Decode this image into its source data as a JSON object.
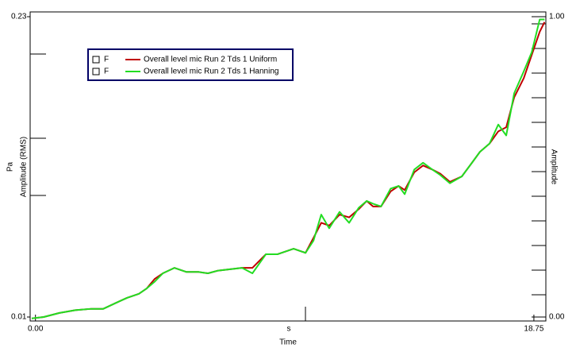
{
  "chart_data": {
    "type": "line",
    "y_unit": "Pa",
    "y_label": "Amplitude (RMS)",
    "y2_label": "Amplitude",
    "x_unit": "s",
    "x_label": "Time",
    "x": [
      -0.14,
      0.31,
      0.9,
      1.5,
      2.1,
      2.55,
      2.99,
      3.44,
      3.89,
      4.19,
      4.49,
      4.79,
      5.23,
      5.68,
      6.13,
      6.49,
      6.87,
      7.32,
      7.77,
      8.16,
      8.67,
      9.11,
      9.71,
      10.16,
      10.46,
      10.75,
      11.05,
      11.44,
      11.8,
      12.16,
      12.46,
      12.7,
      13.0,
      13.36,
      13.66,
      13.89,
      14.25,
      14.58,
      14.93,
      15.23,
      15.59,
      16.04,
      16.42,
      16.72,
      17.08,
      17.41,
      17.71,
      18.01,
      18.37,
      18.67,
      18.97,
      19.15
    ],
    "series": [
      {
        "prefix": "F",
        "name": "Overall level mic  Run 2 Tds 1 Uniform",
        "color": "#c00000",
        "values": [
          0.009,
          0.01,
          0.013,
          0.015,
          0.016,
          0.016,
          0.02,
          0.024,
          0.027,
          0.031,
          0.038,
          0.042,
          0.046,
          0.043,
          0.043,
          0.042,
          0.044,
          0.045,
          0.046,
          0.046,
          0.056,
          0.056,
          0.06,
          0.057,
          0.068,
          0.079,
          0.077,
          0.085,
          0.083,
          0.089,
          0.095,
          0.091,
          0.091,
          0.102,
          0.106,
          0.103,
          0.116,
          0.121,
          0.118,
          0.115,
          0.109,
          0.113,
          0.123,
          0.131,
          0.137,
          0.146,
          0.149,
          0.171,
          0.185,
          0.202,
          0.219,
          0.226
        ]
      },
      {
        "prefix": "F",
        "name": "Overall level mic  Run 2 Tds 1 Hanning",
        "color": "#22dd22",
        "values": [
          0.009,
          0.01,
          0.013,
          0.015,
          0.016,
          0.016,
          0.02,
          0.024,
          0.027,
          0.031,
          0.036,
          0.042,
          0.046,
          0.043,
          0.043,
          0.042,
          0.044,
          0.045,
          0.046,
          0.042,
          0.056,
          0.056,
          0.06,
          0.057,
          0.066,
          0.085,
          0.075,
          0.087,
          0.079,
          0.09,
          0.095,
          0.093,
          0.091,
          0.104,
          0.106,
          0.1,
          0.118,
          0.123,
          0.118,
          0.114,
          0.108,
          0.113,
          0.123,
          0.131,
          0.137,
          0.151,
          0.143,
          0.174,
          0.19,
          0.204,
          0.228,
          0.228
        ]
      }
    ],
    "xlim": [
      -0.2,
      19.2
    ],
    "xticks": [
      {
        "value": 0,
        "label": "0.00"
      },
      {
        "value": 18.75,
        "label": "18.75"
      }
    ],
    "ylim": [
      0.01,
      0.23
    ],
    "yticks": [
      0.01,
      0.23
    ],
    "y2lim": [
      0,
      1
    ],
    "y2ticks": [
      {
        "value": 0,
        "label": "0.00"
      },
      {
        "value": 1,
        "label": "1.00"
      }
    ]
  }
}
